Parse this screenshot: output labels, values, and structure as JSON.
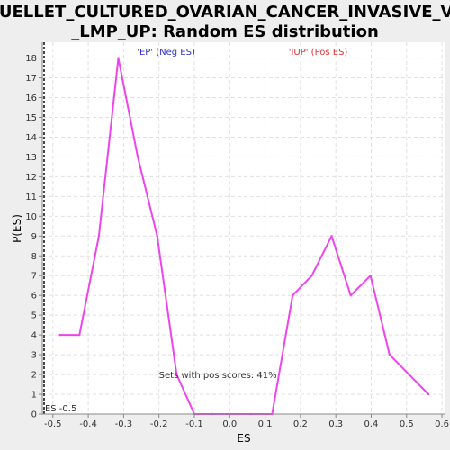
{
  "chart_data": {
    "type": "line",
    "title_lines": [
      "OUELLET_CULTURED_OVARIAN_CANCER_INVASIVE_VS",
      "_LMP_UP: Random ES distribution"
    ],
    "xlabel": "ES",
    "ylabel": "P(ES)",
    "xlim": [
      -0.53,
      0.61
    ],
    "ylim": [
      0,
      18.8
    ],
    "x_ticks": [
      -0.5,
      -0.4,
      -0.3,
      -0.2,
      -0.1,
      0.0,
      0.1,
      0.2,
      0.3,
      0.4,
      0.5,
      0.6
    ],
    "x_tick_labels": [
      "-0.5",
      "-0.4",
      "-0.3",
      "-0.2",
      "-0.1",
      "0.0",
      "0.1",
      "0.2",
      "0.3",
      "0.4",
      "0.5",
      "0.6"
    ],
    "y_ticks": [
      0,
      1,
      2,
      3,
      4,
      5,
      6,
      7,
      8,
      9,
      10,
      11,
      12,
      13,
      14,
      15,
      16,
      17,
      18
    ],
    "y_tick_labels": [
      "0",
      "1",
      "2",
      "3",
      "4",
      "5",
      "6",
      "7",
      "8",
      "9",
      "10",
      "11",
      "12",
      "13",
      "14",
      "15",
      "16",
      "17",
      "18"
    ],
    "grid": true,
    "series": [
      {
        "color": "#ee44ee",
        "x": [
          -0.48,
          -0.425,
          -0.37,
          -0.315,
          -0.26,
          -0.205,
          -0.15,
          -0.1,
          -0.05,
          0.0,
          0.06,
          0.12,
          0.178,
          0.232,
          0.288,
          0.342,
          0.398,
          0.452,
          0.562
        ],
        "y": [
          4,
          4,
          9,
          18,
          13,
          9,
          2,
          0,
          0,
          0,
          0,
          0,
          6,
          7,
          9,
          6,
          7,
          3,
          1
        ]
      }
    ],
    "observed_es": -0.525,
    "observed_es_label": "ES -0.5",
    "regions": [
      {
        "label": "'EP' (Neg ES)",
        "color": "#3333cc",
        "x": -0.18
      },
      {
        "label": "'IUP' (Pos ES)",
        "color": "#dd3333",
        "x": 0.25
      }
    ],
    "annotation": "Sets with pos scores: 41%",
    "annotation_pos": {
      "x": -0.2,
      "y": 2
    }
  }
}
